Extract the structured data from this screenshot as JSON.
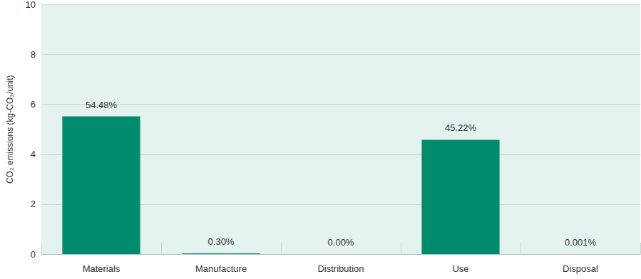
{
  "chart_data": {
    "type": "bar",
    "y_label": "CO₂ emissions (kg-CO₂/unit)",
    "categories": [
      "Materials",
      "Manufacture",
      "Distribution",
      "Use",
      "Disposal"
    ],
    "values": [
      5.52,
      0.03,
      0,
      4.58,
      0.0001
    ],
    "share_labels": [
      "54.48%",
      "0.30%",
      "0.00%",
      "45.22%",
      "0.001%"
    ],
    "color": "#008b6e",
    "ylim": [
      0,
      10
    ],
    "yticks": [
      0,
      2,
      4,
      6,
      8,
      10
    ],
    "grid": true
  }
}
